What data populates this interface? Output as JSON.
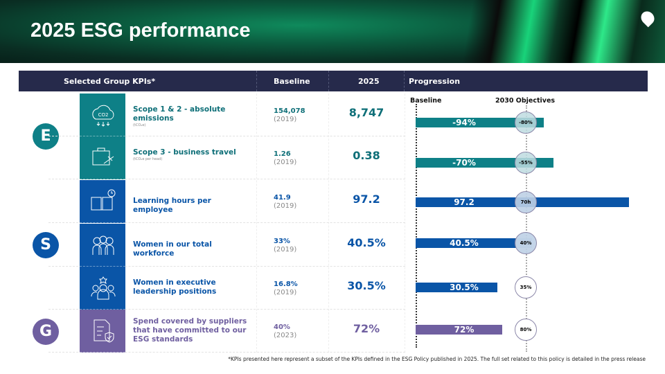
{
  "title": "2025 ESG performance",
  "header": {
    "kpis": "Selected Group KPIs*",
    "baseline": "Baseline",
    "year": "2025",
    "progression": "Progression"
  },
  "colors": {
    "environment": "#0e8087",
    "social": "#0a55a7",
    "governance": "#6f5fa0",
    "header": "#262a4b"
  },
  "pillars": [
    {
      "letter": "E"
    },
    {
      "letter": "S"
    },
    {
      "letter": "G"
    }
  ],
  "chart_data": {
    "type": "bar",
    "xlabel_left": "Baseline",
    "xlabel_right": "2030 Objectives",
    "rows": [
      {
        "kpi": "Scope 1 & 2 - absolute emissions",
        "unit": "(tCO₂e)",
        "baseline": "154,078",
        "baseline_year": "(2019)",
        "value_2025": "8,747",
        "bar_label": "-94%",
        "objective": "-80%",
        "pillar": "E",
        "icon": "co2-cloud-icon"
      },
      {
        "kpi": "Scope 3 - business travel",
        "unit": "(tCO₂e per head)",
        "baseline": "1.26",
        "baseline_year": "(2019)",
        "value_2025": "0.38",
        "bar_label": "-70%",
        "objective": "-55%",
        "pillar": "E",
        "icon": "suitcase-plane-icon"
      },
      {
        "kpi": "Learning hours per employee",
        "unit": "",
        "baseline": "41.9",
        "baseline_year": "(2019)",
        "value_2025": "97.2",
        "bar_label": "97.2",
        "objective": "70h",
        "pillar": "S",
        "icon": "book-clock-icon"
      },
      {
        "kpi": "Women in our total workforce",
        "unit": "",
        "baseline": "33%",
        "baseline_year": "(2019)",
        "value_2025": "40.5%",
        "bar_label": "40.5%",
        "objective": "40%",
        "pillar": "S",
        "icon": "women-group-icon"
      },
      {
        "kpi": "Women in executive leadership positions",
        "unit": "",
        "baseline": "16.8%",
        "baseline_year": "(2019)",
        "value_2025": "30.5%",
        "bar_label": "30.5%",
        "objective": "35%",
        "pillar": "S",
        "icon": "leader-group-icon"
      },
      {
        "kpi": "Spend covered by suppliers that have committed to our ESG standards",
        "unit": "",
        "baseline": "40%",
        "baseline_year": "(2023)",
        "value_2025": "72%",
        "bar_label": "72%",
        "objective": "80%",
        "pillar": "G",
        "icon": "document-shield-icon"
      }
    ]
  },
  "footnote": "*KPIs presented here represent a subset of the KPIs defined in the ESG Policy published in 2025. The full set related to this policy is detailed in the press release"
}
